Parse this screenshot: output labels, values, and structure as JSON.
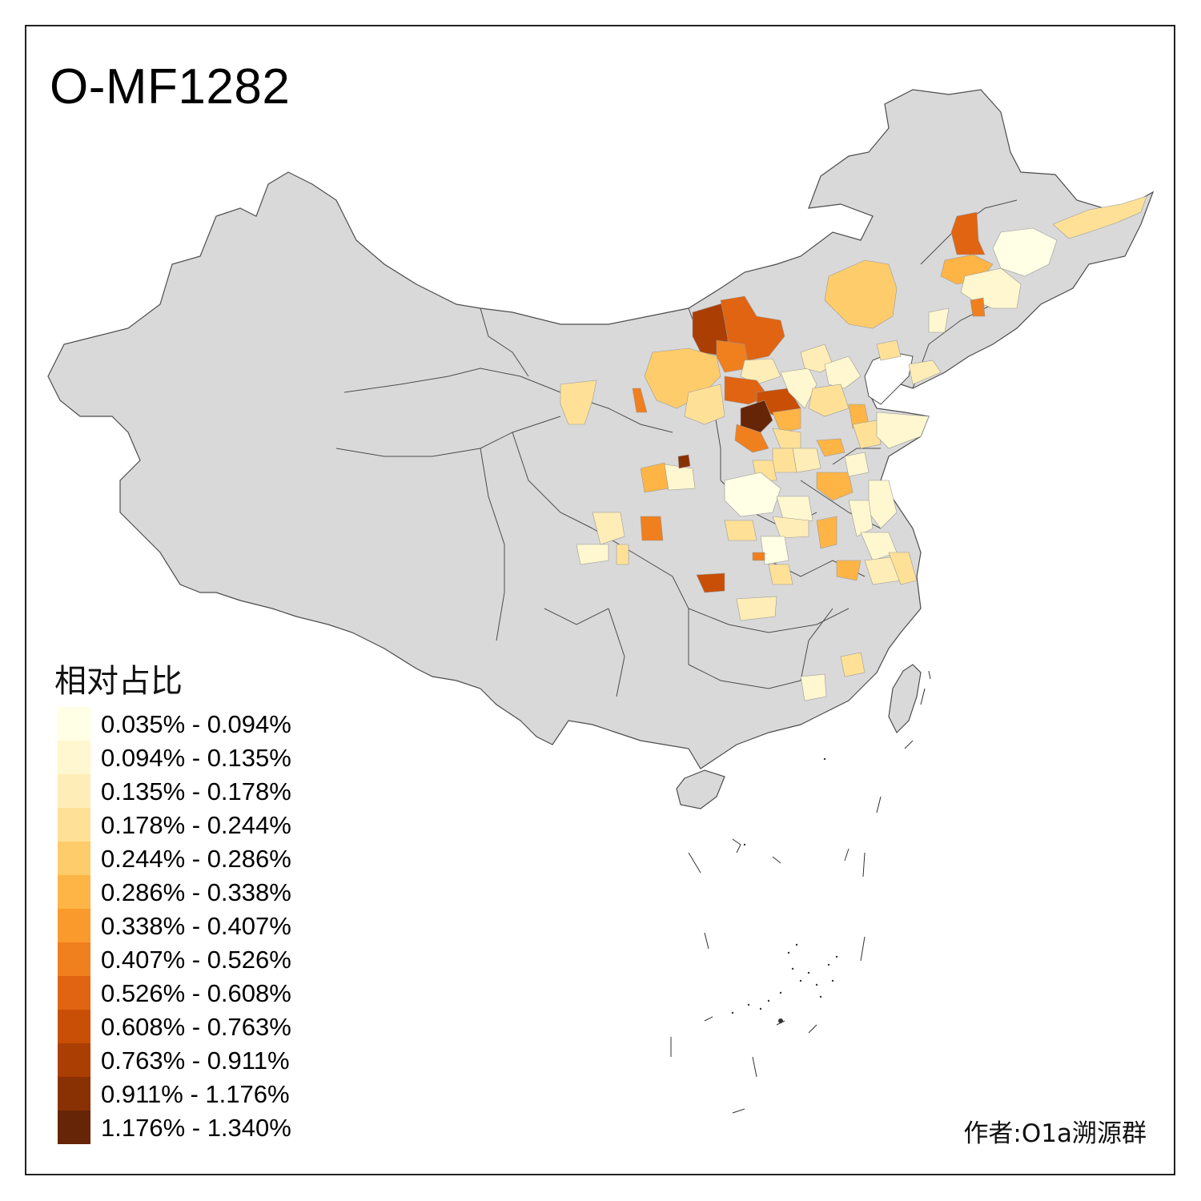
{
  "title": "O-MF1282",
  "legend": {
    "title": "相对占比",
    "items": [
      {
        "label": "0.035% - 0.094%",
        "color": "#FFFFE5"
      },
      {
        "label": "0.094% - 0.135%",
        "color": "#FFF7CF"
      },
      {
        "label": "0.135% - 0.178%",
        "color": "#FEEDB6"
      },
      {
        "label": "0.178% - 0.244%",
        "color": "#FEE197"
      },
      {
        "label": "0.244% - 0.286%",
        "color": "#FECC6B"
      },
      {
        "label": "0.286% - 0.338%",
        "color": "#FEB546"
      },
      {
        "label": "0.338% - 0.407%",
        "color": "#FB9A2C"
      },
      {
        "label": "0.407% - 0.526%",
        "color": "#F07F1E"
      },
      {
        "label": "0.526% - 0.608%",
        "color": "#E06412"
      },
      {
        "label": "0.608% - 0.763%",
        "color": "#C94F06"
      },
      {
        "label": "0.763% - 0.911%",
        "color": "#AB3E03"
      },
      {
        "label": "0.911% - 1.176%",
        "color": "#8A3104"
      },
      {
        "label": "1.176% - 1.340%",
        "color": "#662506"
      }
    ]
  },
  "author": "作者:O1a溯源群",
  "colors": {
    "land": "#D9D9D9",
    "border": "#4D4D4D"
  }
}
